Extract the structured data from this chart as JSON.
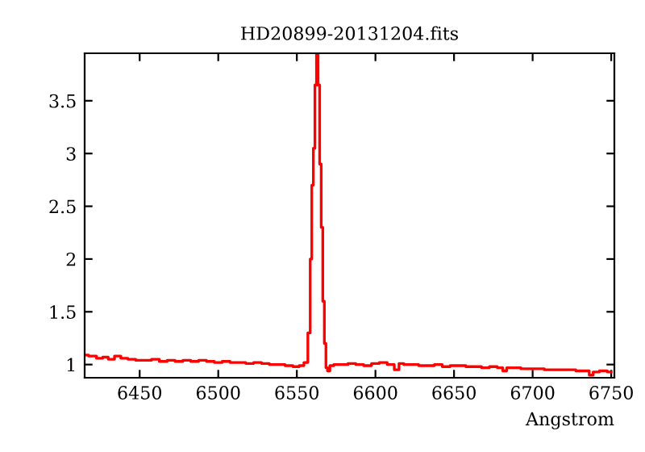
{
  "chart_data": {
    "type": "step",
    "title": "HD20899-20131204.fits",
    "xlabel": "Angstrom",
    "x": [
      6415,
      6420,
      6425,
      6428,
      6432,
      6436,
      6440,
      6445,
      6450,
      6455,
      6460,
      6465,
      6470,
      6475,
      6480,
      6485,
      6490,
      6495,
      6500,
      6505,
      6510,
      6515,
      6520,
      6525,
      6530,
      6535,
      6540,
      6545,
      6550,
      6553,
      6556,
      6558,
      6559,
      6560,
      6561,
      6562,
      6563,
      6564,
      6565,
      6566,
      6567,
      6568,
      6569,
      6570,
      6572,
      6575,
      6580,
      6585,
      6590,
      6595,
      6600,
      6605,
      6610,
      6614,
      6616,
      6620,
      6625,
      6630,
      6635,
      6640,
      6645,
      6650,
      6655,
      6660,
      6665,
      6670,
      6675,
      6680,
      6682,
      6685,
      6690,
      6695,
      6700,
      6705,
      6710,
      6715,
      6720,
      6725,
      6730,
      6735,
      6737,
      6740,
      6745,
      6750
    ],
    "values": [
      1.09,
      1.08,
      1.06,
      1.07,
      1.05,
      1.08,
      1.06,
      1.05,
      1.04,
      1.04,
      1.05,
      1.03,
      1.04,
      1.03,
      1.04,
      1.03,
      1.04,
      1.03,
      1.02,
      1.03,
      1.02,
      1.02,
      1.01,
      1.02,
      1.01,
      1.0,
      1.0,
      0.99,
      0.98,
      0.99,
      1.02,
      1.3,
      2.0,
      2.7,
      3.05,
      3.65,
      3.95,
      3.65,
      2.9,
      2.3,
      1.6,
      1.2,
      0.97,
      0.94,
      0.99,
      1.0,
      1.0,
      1.01,
      1.0,
      0.99,
      1.01,
      1.02,
      1.0,
      0.95,
      1.01,
      1.0,
      1.0,
      0.99,
      0.99,
      1.0,
      0.98,
      0.99,
      0.99,
      0.98,
      0.98,
      0.97,
      0.98,
      0.97,
      0.94,
      0.97,
      0.97,
      0.96,
      0.96,
      0.96,
      0.95,
      0.95,
      0.95,
      0.95,
      0.94,
      0.94,
      0.9,
      0.93,
      0.94,
      0.93
    ],
    "color": "#ff0000",
    "xlim": [
      6415,
      6752
    ],
    "ylim": [
      0.875,
      3.95
    ],
    "xticks": [
      6450,
      6500,
      6550,
      6600,
      6650,
      6700,
      6750
    ],
    "yticks": [
      1,
      1.5,
      2,
      2.5,
      3,
      3.5
    ],
    "grid": false,
    "legend": false
  }
}
